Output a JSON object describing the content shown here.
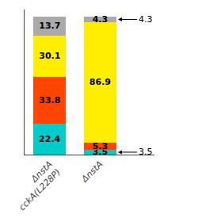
{
  "chart_data": {
    "type": "bar",
    "stacked": true,
    "categories": [
      "ΔnstA\ncckA(L228P)",
      "ΔnstA"
    ],
    "series": [
      {
        "color": "#00CCCC",
        "values": [
          22.4,
          3.5
        ]
      },
      {
        "color": "#FF4500",
        "values": [
          33.8,
          5.3
        ]
      },
      {
        "color": "#FFEE00",
        "values": [
          30.1,
          86.9
        ]
      },
      {
        "color": "#AAAAAA",
        "values": [
          13.7,
          4.3
        ]
      }
    ],
    "ylim": [
      0,
      105
    ],
    "yticks": [],
    "tick_labels": "x",
    "grid": false,
    "data_labels": true,
    "annotations": [
      {
        "text": "4.3",
        "x": "ΔnstA",
        "y": 97.85
      },
      {
        "text": "3.5",
        "x": "ΔnstA",
        "y": 1.75
      }
    ]
  }
}
